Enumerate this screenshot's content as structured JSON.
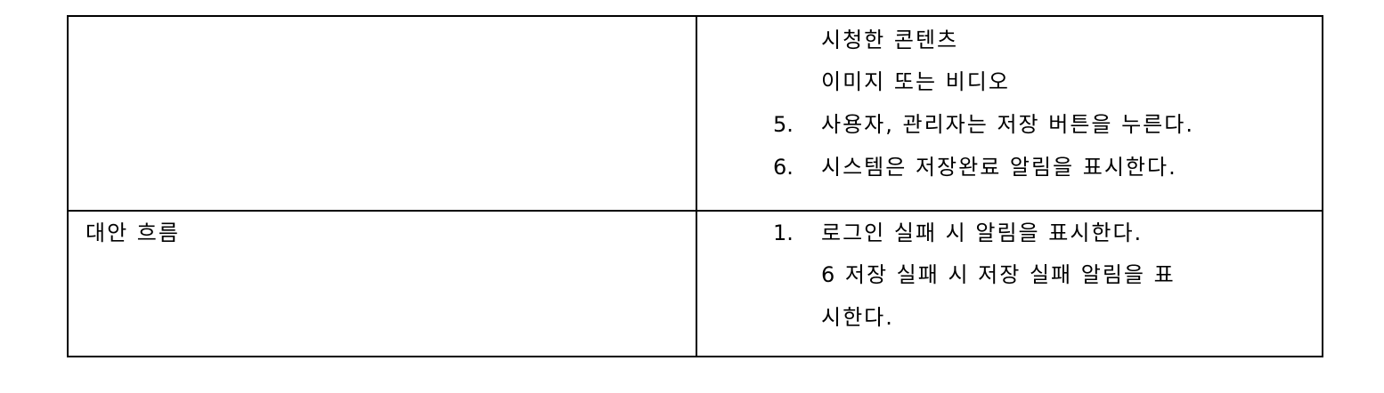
{
  "table": {
    "rows": [
      {
        "label": "",
        "lines": [
          {
            "number": "",
            "text": "시청한 콘텐츠"
          },
          {
            "number": "",
            "text": "이미지 또는 비디오"
          },
          {
            "number": "5.",
            "text": "사용자, 관리자는 저장 버튼을 누른다."
          },
          {
            "number": "6.",
            "text": "시스템은 저장완료 알림을 표시한다."
          }
        ]
      },
      {
        "label": "대안 흐름",
        "lines": [
          {
            "number": "1.",
            "text": "로그인 실패 시 알림을 표시한다."
          },
          {
            "number": "",
            "text": "6 저장 실패 시 저장 실패 알림을 표"
          },
          {
            "number": "",
            "text": "시한다."
          }
        ]
      }
    ]
  }
}
